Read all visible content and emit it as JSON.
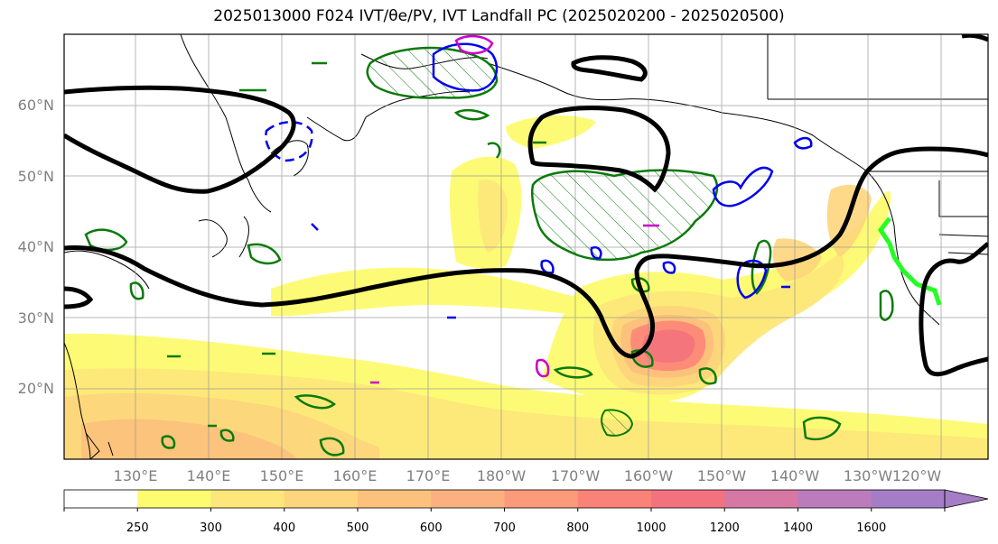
{
  "title": "2025013000 F024 IVT/θe/PV, IVT Landfall PC (2025020200 - 2025020500)",
  "map": {
    "lat_labels": [
      "60°N",
      "50°N",
      "40°N",
      "30°N",
      "20°N"
    ],
    "lon_labels": [
      "130°E",
      "140°E",
      "150°E",
      "160°E",
      "170°E",
      "180°W",
      "170°W",
      "160°W",
      "150°W",
      "140°W",
      "130°W",
      "120°W"
    ]
  },
  "colorbar": {
    "levels": [
      "250",
      "300",
      "400",
      "500",
      "600",
      "700",
      "800",
      "1000",
      "1200",
      "1400",
      "1600"
    ],
    "colors": [
      "#ffffff",
      "#fdfb6f",
      "#fde77a",
      "#fdd57c",
      "#fcc17c",
      "#fdb07f",
      "#fc9a7c",
      "#fb8278",
      "#f2727d",
      "#d777a4",
      "#bb7cbc",
      "#a57dc6"
    ]
  },
  "colors": {
    "jet_contour": "#000000",
    "pv_contour": "#0a7a0a",
    "theta_contour_blue": "#0000ee",
    "theta_contour_magenta": "#cc00cc",
    "landfall_line": "#22ff22",
    "coastline": "#000000"
  }
}
